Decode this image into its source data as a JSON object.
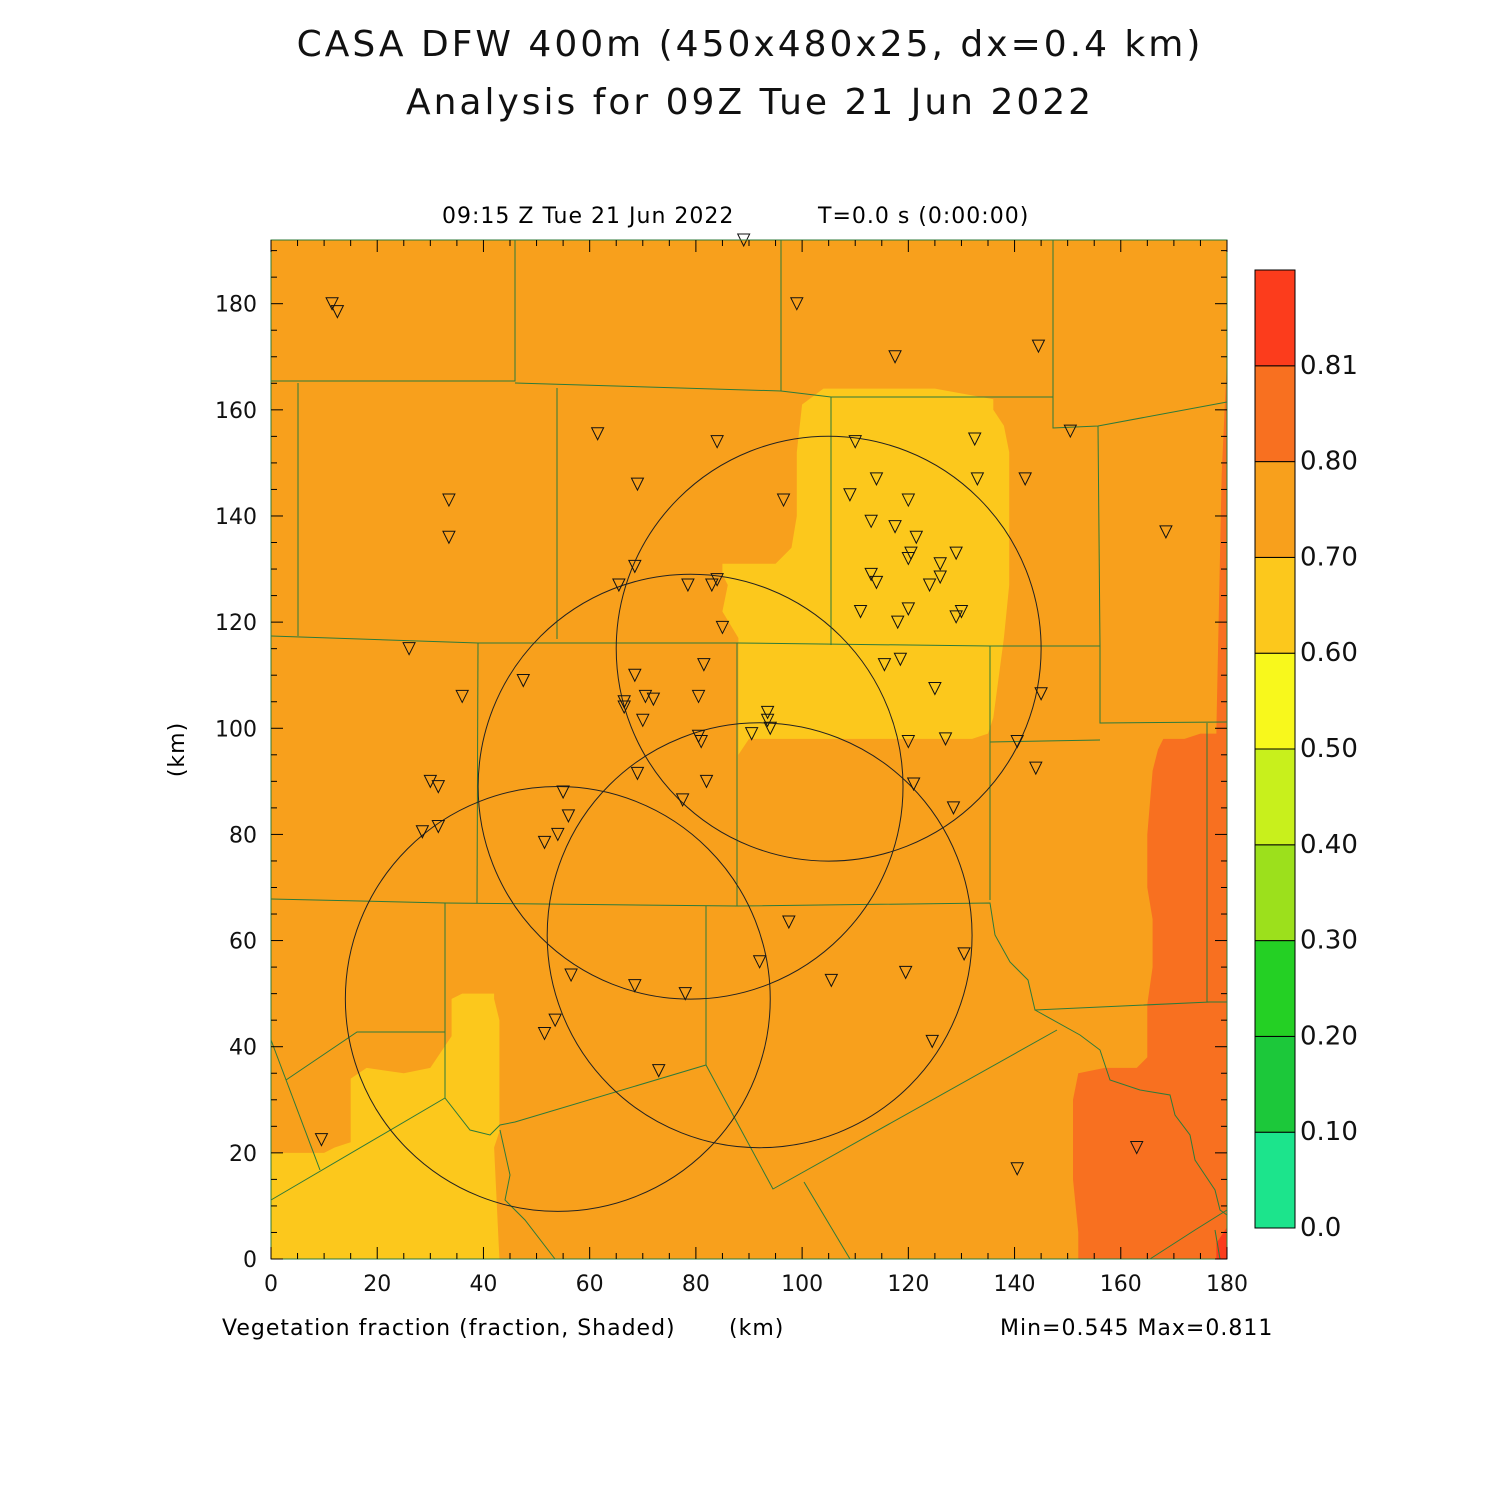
{
  "title_line1": "CASA DFW 400m (450x480x25, dx=0.4 km)",
  "title_line2": "Analysis for 09Z Tue 21 Jun 2022",
  "time_label": "09:15 Z Tue 21 Jun 2022",
  "t_label": "T=0.0 s (0:00:00)",
  "field_label": "Vegetation fraction (fraction, Shaded)",
  "x_unit": "(km)",
  "y_unit": "(km)",
  "minmax": "Min=0.545 Max=0.811",
  "chart_data": {
    "type": "heatmap",
    "variable": "Vegetation fraction",
    "units": "fraction",
    "min": 0.545,
    "max": 0.811,
    "xlim": [
      0,
      180
    ],
    "ylim": [
      0,
      192
    ],
    "xticks": [
      "0",
      "20",
      "40",
      "60",
      "80",
      "100",
      "120",
      "140",
      "160",
      "180"
    ],
    "yticks": [
      "0",
      "20",
      "40",
      "60",
      "80",
      "100",
      "120",
      "140",
      "160",
      "180"
    ],
    "colorbar": {
      "labels": [
        "0.0",
        "0.10",
        "0.20",
        "0.30",
        "0.40",
        "0.50",
        "0.60",
        "0.70",
        "0.80",
        "0.81"
      ],
      "colors": [
        "#1ce48c",
        "#1cc83a",
        "#24d024",
        "#9ce01c",
        "#c8f01c",
        "#f8f81c",
        "#fcc81c",
        "#f8a01c",
        "#f87020",
        "#fc3c1c"
      ]
    },
    "background_value_color": "#f8a01c",
    "regions": [
      {
        "value_class": "0.50-0.60",
        "color": "#fcc81c",
        "polygon": [
          [
            88,
            92
          ],
          [
            88,
            117
          ],
          [
            85,
            122
          ],
          [
            86,
            127
          ],
          [
            85,
            129
          ],
          [
            85,
            131
          ],
          [
            95,
            131
          ],
          [
            98,
            134
          ],
          [
            99,
            140
          ],
          [
            99,
            152
          ],
          [
            100,
            161
          ],
          [
            104,
            164
          ],
          [
            125,
            164
          ],
          [
            136,
            162
          ],
          [
            136,
            160
          ],
          [
            138,
            157
          ],
          [
            139,
            152
          ],
          [
            139,
            127
          ],
          [
            138,
            117
          ],
          [
            136,
            102
          ],
          [
            135,
            99
          ],
          [
            132,
            98
          ],
          [
            120,
            98
          ],
          [
            108,
            98
          ],
          [
            90,
            98
          ],
          [
            88,
            95
          ]
        ]
      },
      {
        "value_class": "0.50-0.60",
        "color": "#fcc81c",
        "polygon": [
          [
            0,
            0
          ],
          [
            0,
            20
          ],
          [
            10,
            20
          ],
          [
            12,
            21
          ],
          [
            15,
            22
          ],
          [
            15,
            34
          ],
          [
            18,
            36
          ],
          [
            25,
            35
          ],
          [
            30,
            36
          ],
          [
            34,
            42
          ],
          [
            34,
            49
          ],
          [
            36,
            50
          ],
          [
            40,
            50
          ],
          [
            42,
            50
          ],
          [
            42,
            49
          ],
          [
            43,
            45
          ],
          [
            43,
            24
          ],
          [
            42,
            21
          ],
          [
            43,
            0
          ]
        ]
      },
      {
        "value_class": "0.70-0.80",
        "color": "#f87020",
        "polygon": [
          [
            180,
            0
          ],
          [
            180,
            170
          ],
          [
            179,
            148
          ],
          [
            178,
            100
          ],
          [
            178,
            99
          ],
          [
            175,
            99
          ],
          [
            172,
            98
          ],
          [
            168,
            98
          ],
          [
            167,
            96
          ],
          [
            166,
            92
          ],
          [
            165,
            80
          ],
          [
            165,
            70
          ],
          [
            166,
            64
          ],
          [
            166,
            55
          ],
          [
            165,
            48
          ],
          [
            165,
            38
          ],
          [
            163,
            36
          ],
          [
            157,
            36
          ],
          [
            152,
            35
          ],
          [
            151,
            30
          ],
          [
            151,
            15
          ],
          [
            152,
            5
          ],
          [
            152,
            0
          ]
        ]
      },
      {
        "value_class": "0.80-0.81",
        "color": "#fc3c1c",
        "polygon": [
          [
            178,
            0
          ],
          [
            180,
            0
          ],
          [
            180,
            6
          ],
          [
            178,
            3
          ]
        ]
      }
    ],
    "range_rings_km": [
      {
        "center": [
          105,
          115
        ],
        "radius": 40
      },
      {
        "center": [
          79,
          89
        ],
        "radius": 40
      },
      {
        "center": [
          92,
          61
        ],
        "radius": 40
      },
      {
        "center": [
          54,
          49
        ],
        "radius": 40
      }
    ],
    "stations": [
      [
        11.5,
        180
      ],
      [
        12.5,
        178.5
      ],
      [
        99,
        180
      ],
      [
        89,
        192
      ],
      [
        117.5,
        170
      ],
      [
        144.5,
        172
      ],
      [
        61.5,
        155.5
      ],
      [
        84,
        154
      ],
      [
        110,
        154
      ],
      [
        132.5,
        154.5
      ],
      [
        150.5,
        156
      ],
      [
        33.5,
        143
      ],
      [
        33.5,
        136
      ],
      [
        69,
        146
      ],
      [
        96.5,
        143
      ],
      [
        109,
        144
      ],
      [
        114,
        147
      ],
      [
        120,
        143
      ],
      [
        133,
        147
      ],
      [
        142,
        147
      ],
      [
        168.5,
        137
      ],
      [
        113,
        139
      ],
      [
        117.5,
        138
      ],
      [
        121.5,
        136
      ],
      [
        120.5,
        133
      ],
      [
        120,
        132
      ],
      [
        129,
        133
      ],
      [
        126,
        131
      ],
      [
        65.5,
        127
      ],
      [
        68.5,
        130.5
      ],
      [
        78.5,
        127
      ],
      [
        83,
        127
      ],
      [
        84,
        128
      ],
      [
        113,
        129
      ],
      [
        114,
        127.5
      ],
      [
        124,
        127
      ],
      [
        126,
        128.5
      ],
      [
        85,
        119
      ],
      [
        111,
        122
      ],
      [
        118,
        120
      ],
      [
        120,
        122.5
      ],
      [
        129,
        121
      ],
      [
        130,
        122
      ],
      [
        26,
        115
      ],
      [
        36,
        106
      ],
      [
        47.5,
        109
      ],
      [
        68.5,
        110
      ],
      [
        81.5,
        112
      ],
      [
        115.5,
        112
      ],
      [
        118.5,
        113
      ],
      [
        125,
        107.5
      ],
      [
        145,
        106.5
      ],
      [
        66.5,
        104
      ],
      [
        66.5,
        105
      ],
      [
        70.5,
        106
      ],
      [
        72,
        105.5
      ],
      [
        80.5,
        106
      ],
      [
        70,
        101.5
      ],
      [
        93.5,
        103
      ],
      [
        93.5,
        101.5
      ],
      [
        94,
        100
      ],
      [
        90.5,
        99
      ],
      [
        80.5,
        98.5
      ],
      [
        81,
        97.5
      ],
      [
        120,
        97.5
      ],
      [
        127,
        98
      ],
      [
        140.5,
        97.5
      ],
      [
        30,
        90
      ],
      [
        31.5,
        89
      ],
      [
        69,
        91.5
      ],
      [
        82,
        90
      ],
      [
        121,
        89.5
      ],
      [
        144,
        92.5
      ],
      [
        77.5,
        86.5
      ],
      [
        55,
        88
      ],
      [
        56,
        83.5
      ],
      [
        128.5,
        85
      ],
      [
        28.5,
        80.5
      ],
      [
        31.5,
        81.5
      ],
      [
        54,
        80
      ],
      [
        51.5,
        78.5
      ],
      [
        97.5,
        63.5
      ],
      [
        130.5,
        57.5
      ],
      [
        92,
        56
      ],
      [
        56.5,
        53.5
      ],
      [
        68.5,
        51.5
      ],
      [
        78,
        50
      ],
      [
        105.5,
        52.5
      ],
      [
        119.5,
        54
      ],
      [
        53.5,
        45
      ],
      [
        51.5,
        42.5
      ],
      [
        124.5,
        41
      ],
      [
        73,
        35.5
      ],
      [
        9.5,
        22.5
      ],
      [
        163,
        21
      ],
      [
        140.5,
        17
      ]
    ]
  }
}
